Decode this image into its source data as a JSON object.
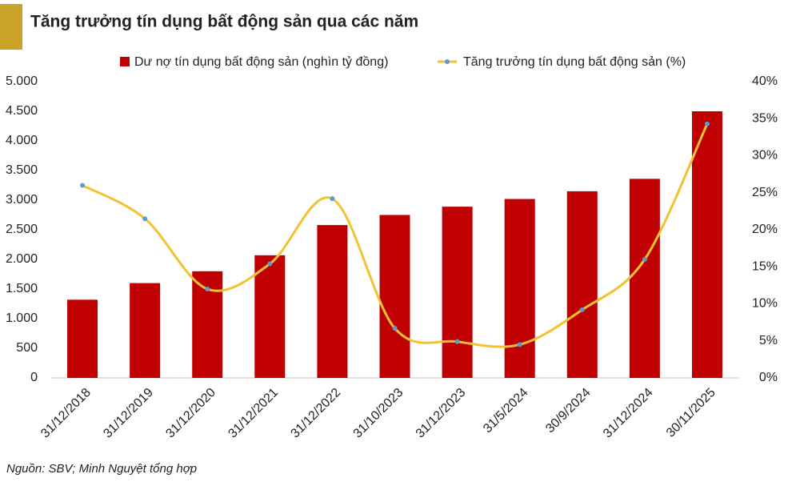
{
  "chart_data": {
    "type": "bar-line",
    "title": "Tăng trưởng tín dụng bất động sản qua các năm",
    "source": "Nguồn: SBV; Minh Nguyệt tổng hợp",
    "categories": [
      "31/12/2018",
      "31/12/2019",
      "31/12/2020",
      "31/12/2021",
      "31/12/2022",
      "31/10/2023",
      "31/12/2023",
      "31/5/2024",
      "30/9/2024",
      "31/12/2024",
      "30/11/2025"
    ],
    "series": [
      {
        "name": "Dư nợ tín dụng bất động sản (nghìn tỷ đồng)",
        "type": "bar",
        "color": "#c00000",
        "values": [
          1320,
          1600,
          1800,
          2070,
          2580,
          2750,
          2890,
          3020,
          3150,
          3360,
          4500
        ]
      },
      {
        "name": "Tăng trưởng tín dụng bất động sản (%)",
        "type": "line",
        "axis": "y2",
        "color": "#f2c232",
        "marker_color": "#5b9bd5",
        "values": [
          26,
          21.5,
          12,
          15.4,
          24.2,
          6.7,
          4.9,
          4.5,
          9.2,
          16,
          34.3
        ]
      }
    ],
    "ylim": [
      0,
      5000
    ],
    "yticks": [
      0,
      {
        "value": 500,
        "label": "500"
      },
      {
        "value": 1000,
        "label": "1.000"
      },
      {
        "value": 1500,
        "label": "1.500"
      },
      {
        "value": 2000,
        "label": "2.000"
      },
      {
        "value": 2500,
        "label": "2.500"
      },
      {
        "value": 3000,
        "label": "3.000"
      },
      {
        "value": 3500,
        "label": "3.500"
      },
      {
        "value": 4000,
        "label": "4.000"
      },
      {
        "value": 4500,
        "label": "4.500"
      },
      {
        "value": 5000,
        "label": "5.000"
      }
    ],
    "y2lim": [
      0,
      40
    ],
    "y2ticks": [
      {
        "value": 0,
        "label": "0%"
      },
      {
        "value": 5,
        "label": "5%"
      },
      {
        "value": 10,
        "label": "10%"
      },
      {
        "value": 15,
        "label": "15%"
      },
      {
        "value": 20,
        "label": "20%"
      },
      {
        "value": 25,
        "label": "25%"
      },
      {
        "value": 30,
        "label": "30%"
      },
      {
        "value": 35,
        "label": "35%"
      },
      {
        "value": 40,
        "label": "40%"
      }
    ],
    "grid": false
  }
}
